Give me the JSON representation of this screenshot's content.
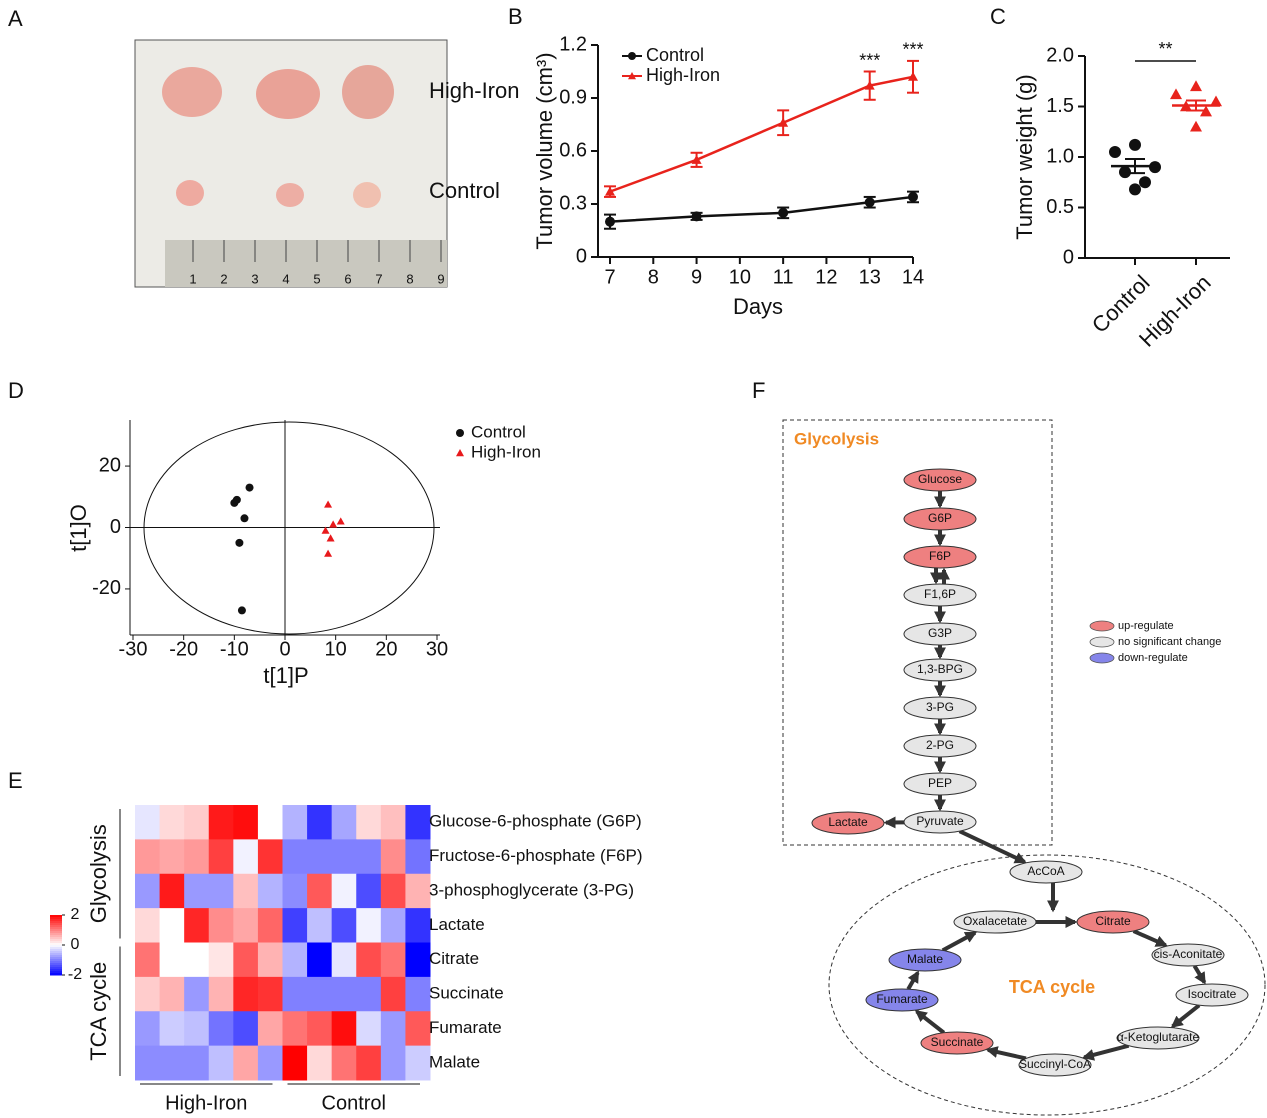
{
  "panel_labels": [
    "A",
    "B",
    "C",
    "D",
    "E",
    "F"
  ],
  "photo": {
    "row_labels": [
      "High-Iron",
      "Control"
    ],
    "ruler_labels": [
      "1",
      "2",
      "3",
      "4",
      "5",
      "6",
      "7",
      "8",
      "9"
    ]
  },
  "chart_data": [
    {
      "type": "line",
      "xlabel": "Days",
      "ylabel": "Tumor volume (cm³)",
      "x": [
        7,
        9,
        11,
        13,
        14
      ],
      "xlim": [
        7,
        14
      ],
      "xticks": [
        7,
        8,
        9,
        10,
        11,
        12,
        13,
        14
      ],
      "ylim": [
        0,
        1.2
      ],
      "yticks": [
        0,
        0.3,
        0.6,
        0.9,
        1.2
      ],
      "legend": "upper left",
      "series": [
        {
          "name": "Control",
          "color": "#111111",
          "marker": "circle",
          "values": [
            0.2,
            0.23,
            0.25,
            0.31,
            0.34
          ],
          "errors": [
            0.04,
            0.02,
            0.03,
            0.03,
            0.03
          ]
        },
        {
          "name": "High-Iron",
          "color": "#e8231c",
          "marker": "triangle",
          "values": [
            0.37,
            0.55,
            0.76,
            0.97,
            1.02
          ],
          "errors": [
            0.03,
            0.04,
            0.07,
            0.08,
            0.09
          ]
        }
      ],
      "annotations": [
        {
          "text": "***",
          "x": 13
        },
        {
          "text": "***",
          "x": 14
        }
      ]
    },
    {
      "type": "dotplot",
      "ylabel": "Tumor weight (g)",
      "categories": [
        "Control",
        "High-Iron"
      ],
      "ylim": [
        0,
        2.0
      ],
      "yticks": [
        0,
        0.5,
        {
          "value": 1,
          "label": "1.0"
        },
        1.5,
        {
          "value": 2,
          "label": "2.0"
        }
      ],
      "colors": [
        "#111111",
        "#e8231c"
      ],
      "markers": [
        "circle",
        "triangle"
      ],
      "values": [
        [
          1.12,
          1.05,
          0.9,
          0.85,
          0.75,
          0.68
        ],
        [
          1.7,
          1.62,
          1.55,
          1.5,
          1.45,
          1.3
        ]
      ],
      "means": [
        0.91,
        1.51
      ],
      "sems": [
        0.07,
        0.05
      ],
      "annotation": "**"
    },
    {
      "type": "scatter",
      "xlabel": "t[1]P",
      "ylabel": "t[1]O",
      "xlim": [
        -30,
        30
      ],
      "xticks": [
        -30,
        -20,
        -10,
        0,
        10,
        20,
        30
      ],
      "ylim": [
        -35,
        35
      ],
      "yticks": [
        -20,
        0,
        20
      ],
      "legend": "right",
      "series": [
        {
          "name": "Control",
          "color": "#111111",
          "marker": "circle",
          "x": [
            -10,
            -9.5,
            -7,
            -8,
            -9,
            -8.5
          ],
          "y": [
            8,
            9,
            13,
            3,
            -5,
            -27
          ]
        },
        {
          "name": "High-Iron",
          "color": "#e8191c",
          "marker": "triangle",
          "x": [
            8.5,
            11,
            9.5,
            8,
            9,
            8.5
          ],
          "y": [
            7.5,
            2,
            1,
            -1,
            -3.5,
            -8.5
          ]
        }
      ]
    },
    {
      "type": "heatmap",
      "rows": [
        "Glucose-6-phosphate (G6P)",
        "Fructose-6-phosphate (F6P)",
        "3-phosphoglycerate (3-PG)",
        "Lactate",
        "Citrate",
        "Succinate",
        "Fumarate",
        "Malate"
      ],
      "row_groups": [
        "Glycolysis",
        "TCA cycle"
      ],
      "column_groups": [
        "High-Iron",
        "Control"
      ],
      "zlim": [
        -2,
        2
      ],
      "colorbar_ticks": [
        2,
        0,
        -2
      ],
      "colorscale": [
        "#0000ff",
        "#ffffff",
        "#ff0000"
      ],
      "values": [
        [
          -0.2,
          0.3,
          0.4,
          1.8,
          1.9,
          0,
          -0.6,
          -1.6,
          -0.7,
          0.3,
          0.5,
          -1.6
        ],
        [
          0.8,
          0.7,
          0.8,
          1.5,
          -0.1,
          1.6,
          -1.0,
          -1.0,
          -1.0,
          -1.0,
          0.9,
          -1.1
        ],
        [
          -0.8,
          1.8,
          -0.8,
          -0.8,
          0.5,
          -0.6,
          -0.9,
          1.3,
          -0.1,
          -1.4,
          1.4,
          0.6
        ],
        [
          0.3,
          0,
          1.7,
          0.9,
          0.7,
          1.2,
          -1.5,
          -0.5,
          -1.4,
          -0.1,
          -0.7,
          -1.6
        ],
        [
          1.1,
          0,
          0,
          0.2,
          1.3,
          0.6,
          -0.6,
          -2.0,
          -0.2,
          1.4,
          1.1,
          -2.0
        ],
        [
          0.4,
          0.6,
          -0.8,
          0.6,
          1.7,
          1.6,
          -1.0,
          -1.0,
          -1.0,
          -1.0,
          1.5,
          -1.0
        ],
        [
          -0.8,
          -0.4,
          -0.5,
          -1.1,
          -1.4,
          0.7,
          1.1,
          1.3,
          1.9,
          -0.3,
          -0.8,
          1.3
        ],
        [
          -0.9,
          -0.9,
          -0.9,
          -0.5,
          0.7,
          -0.8,
          2.0,
          0.3,
          1.1,
          1.5,
          -0.8,
          -0.4
        ]
      ]
    }
  ],
  "pathway": {
    "glycolysis_title": "Glycolysis",
    "tca_title": "TCA cycle",
    "legend": [
      {
        "label": "up-regulate",
        "color": "#ee8080"
      },
      {
        "label": "no significant change",
        "color": "#e6e6e6"
      },
      {
        "label": "down-regulate",
        "color": "#8585ea"
      }
    ],
    "nodes": [
      {
        "label": "Glucose",
        "color": "#ee8080"
      },
      {
        "label": "G6P",
        "color": "#ee8080"
      },
      {
        "label": "F6P",
        "color": "#ee8080"
      },
      {
        "label": "F1,6P",
        "color": "#e6e6e6"
      },
      {
        "label": "G3P",
        "color": "#e6e6e6"
      },
      {
        "label": "1,3-BPG",
        "color": "#e6e6e6"
      },
      {
        "label": "3-PG",
        "color": "#e6e6e6"
      },
      {
        "label": "2-PG",
        "color": "#e6e6e6"
      },
      {
        "label": "PEP",
        "color": "#e6e6e6"
      },
      {
        "label": "Pyruvate",
        "color": "#e6e6e6"
      },
      {
        "label": "Lactate",
        "color": "#ee8080"
      },
      {
        "label": "AcCoA",
        "color": "#e6e6e6"
      },
      {
        "label": "Oxalacetate",
        "color": "#e6e6e6"
      },
      {
        "label": "Citrate",
        "color": "#ee8080"
      },
      {
        "label": "cis-Aconitate",
        "color": "#e6e6e6"
      },
      {
        "label": "Isocitrate",
        "color": "#e6e6e6"
      },
      {
        "label": "α-Ketoglutarate",
        "color": "#e6e6e6"
      },
      {
        "label": "Succinyl-CoA",
        "color": "#e6e6e6"
      },
      {
        "label": "Succinate",
        "color": "#ee8080"
      },
      {
        "label": "Fumarate",
        "color": "#8585ea"
      },
      {
        "label": "Malate",
        "color": "#8585ea"
      }
    ]
  }
}
